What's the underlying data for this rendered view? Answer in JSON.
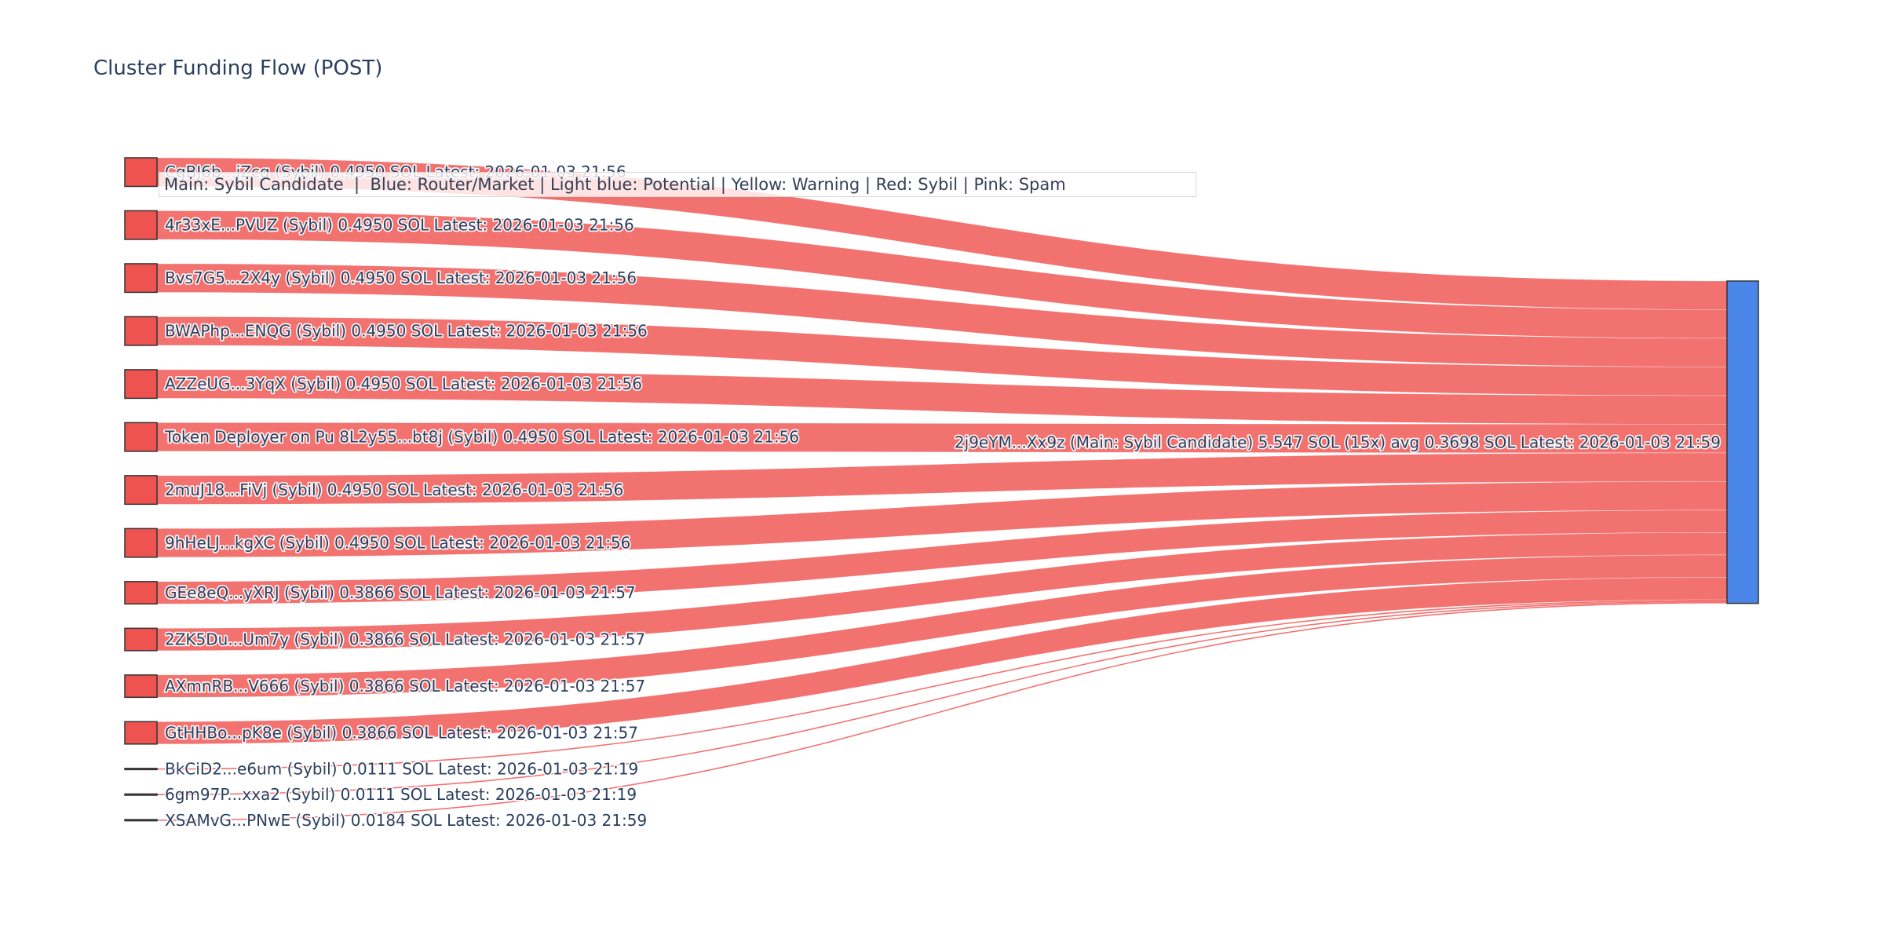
{
  "title": "Cluster Funding Flow (POST)",
  "legend_note": "Main: Sybil Candidate  |  Blue: Router/Market | Light blue: Potential | Yellow: Warning | Red: Sybil | Pink: Spam",
  "chart_data": {
    "type": "sankey",
    "title": "Cluster Funding Flow (POST)",
    "unit": "SOL",
    "legend": "Main: Sybil Candidate  |  Blue: Router/Market | Light blue: Potential | Yellow: Warning | Red: Sybil | Pink: Spam",
    "target_node": {
      "label": "2j9eYM...Xx9z (Main: Sybil Candidate) 5.547 SOL (15x) avg 0.3698 SOL Latest: 2026-01-03 21:59",
      "total_sol": 5.547,
      "inflow_count": 15,
      "avg_sol": 0.3698,
      "latest": "2026-01-03 21:59"
    },
    "source_nodes": [
      {
        "label": "CgBJ6b...jZcq (Sybil) 0.4950 SOL Latest: 2026-01-03 21:56",
        "value_sol": 0.495
      },
      {
        "label": "4r33xE...PVUZ (Sybil) 0.4950 SOL Latest: 2026-01-03 21:56",
        "value_sol": 0.495
      },
      {
        "label": "Bvs7G5...2X4y (Sybil) 0.4950 SOL Latest: 2026-01-03 21:56",
        "value_sol": 0.495
      },
      {
        "label": "BWAPhp...ENQG (Sybil) 0.4950 SOL Latest: 2026-01-03 21:56",
        "value_sol": 0.495
      },
      {
        "label": "AZZeUG...3YqX (Sybil) 0.4950 SOL Latest: 2026-01-03 21:56",
        "value_sol": 0.495
      },
      {
        "label": "Token Deployer on Pu 8L2y55...bt8j (Sybil) 0.4950 SOL Latest: 2026-01-03 21:56",
        "value_sol": 0.495
      },
      {
        "label": "2muJ18...FiVj (Sybil) 0.4950 SOL Latest: 2026-01-03 21:56",
        "value_sol": 0.495
      },
      {
        "label": "9hHeLJ...kgXC (Sybil) 0.4950 SOL Latest: 2026-01-03 21:56",
        "value_sol": 0.495
      },
      {
        "label": "GEe8eQ...yXRJ (Sybil) 0.3866 SOL Latest: 2026-01-03 21:57",
        "value_sol": 0.3866
      },
      {
        "label": "2ZK5Du...Um7y (Sybil) 0.3866 SOL Latest: 2026-01-03 21:57",
        "value_sol": 0.3866
      },
      {
        "label": "AXmnRB...V666 (Sybil) 0.3866 SOL Latest: 2026-01-03 21:57",
        "value_sol": 0.3866
      },
      {
        "label": "GtHHBo...pK8e (Sybil) 0.3866 SOL Latest: 2026-01-03 21:57",
        "value_sol": 0.3866
      },
      {
        "label": "BkCiD2...e6um (Sybil) 0.0111 SOL Latest: 2026-01-03 21:19",
        "value_sol": 0.0111
      },
      {
        "label": "6gm97P...xxa2 (Sybil) 0.0111 SOL Latest: 2026-01-03 21:19",
        "value_sol": 0.0111
      },
      {
        "label": "XSAMvG...PNwE (Sybil) 0.0184 SOL Latest: 2026-01-03 21:59",
        "value_sol": 0.0184
      }
    ],
    "colors": {
      "sybil_red_node": "#ef5350",
      "sybil_red_link": "rgba(239,83,80,0.82)",
      "main_blue_node": "#4a86e8",
      "node_border": "#333333",
      "label_text": "#2a3f5f"
    }
  }
}
